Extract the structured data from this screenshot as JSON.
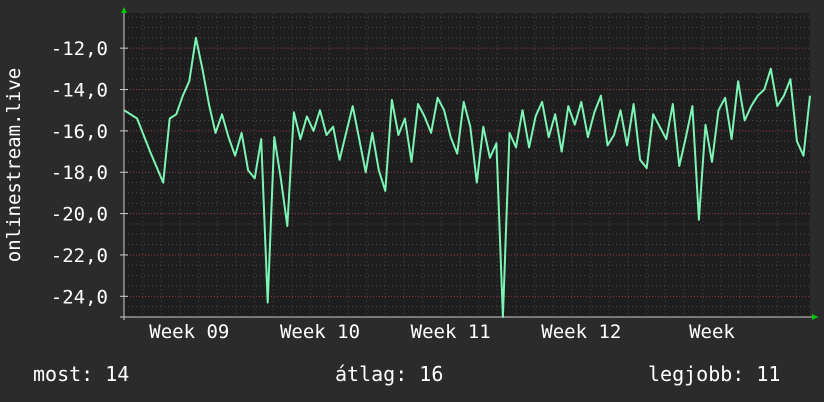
{
  "chart_data": {
    "type": "line",
    "ylabel": "onlinestream.live",
    "xlabel": "",
    "ylim": [
      -25,
      -10.3
    ],
    "y_ticks": [
      "-12,0",
      "-14,0",
      "-16,0",
      "-18,0",
      "-20,0",
      "-22,0",
      "-24,0"
    ],
    "y_tick_values": [
      -12,
      -14,
      -16,
      -18,
      -20,
      -22,
      -24
    ],
    "x_ticks": [
      "Week 09",
      "Week 10",
      "Week 11",
      "Week 12",
      "Week"
    ],
    "xlim": [
      0,
      5.25
    ],
    "x_tick_positions": [
      0.5,
      1.5,
      2.5,
      3.5,
      4.5
    ],
    "grid": true,
    "colors": {
      "line": "#7cf5b4",
      "background": "#1e1e1e",
      "grid": "#c84646",
      "axis_arrow": "#00c800"
    },
    "series": [
      {
        "x": [
          0.0,
          0.1,
          0.2,
          0.3,
          0.35,
          0.4,
          0.45,
          0.5,
          0.55,
          0.6,
          0.65,
          0.7,
          0.75,
          0.8,
          0.85,
          0.9,
          0.95,
          1.0,
          1.05,
          1.1,
          1.15,
          1.2,
          1.25,
          1.3,
          1.35,
          1.4,
          1.45,
          1.5,
          1.55,
          1.6,
          1.65,
          1.7,
          1.75,
          1.8,
          1.85,
          1.9,
          1.95,
          2.0,
          2.05,
          2.1,
          2.15,
          2.2,
          2.25,
          2.3,
          2.35,
          2.4,
          2.45,
          2.5,
          2.55,
          2.6,
          2.65,
          2.7,
          2.75,
          2.8,
          2.85,
          2.9,
          2.95,
          3.0,
          3.05,
          3.1,
          3.15,
          3.2,
          3.25,
          3.3,
          3.35,
          3.4,
          3.45,
          3.5,
          3.55,
          3.6,
          3.65,
          3.7,
          3.75,
          3.8,
          3.85,
          3.9,
          3.95,
          4.0,
          4.05,
          4.1,
          4.15,
          4.2,
          4.25,
          4.3,
          4.35,
          4.4,
          4.45,
          4.5,
          4.55,
          4.6,
          4.65,
          4.7,
          4.75,
          4.8,
          4.85,
          4.9,
          4.95,
          5.0,
          5.05,
          5.1,
          5.15,
          5.2,
          5.25
        ],
        "y": [
          -15,
          -15.4,
          -17,
          -18.5,
          -15.4,
          -15.2,
          -14.3,
          -13.6,
          -11.5,
          -13,
          -14.7,
          -16.1,
          -15.2,
          -16.3,
          -17.2,
          -16.1,
          -17.9,
          -18.3,
          -16.4,
          -24.3,
          -16.3,
          -18.3,
          -20.6,
          -15.1,
          -16.4,
          -15.3,
          -16,
          -15,
          -16.2,
          -15.8,
          -17.4,
          -16.1,
          -14.8,
          -16.4,
          -18,
          -16.1,
          -17.9,
          -18.9,
          -14.5,
          -16.2,
          -15.4,
          -17.5,
          -14.7,
          -15.3,
          -16.1,
          -14.4,
          -15,
          -16.3,
          -17.1,
          -14.6,
          -15.8,
          -18.5,
          -15.8,
          -17.3,
          -16.6,
          -25,
          -16.1,
          -16.8,
          -15,
          -16.8,
          -15.3,
          -14.6,
          -16.3,
          -15.2,
          -17,
          -14.8,
          -15.7,
          -14.6,
          -16.3,
          -15.1,
          -14.3,
          -16.7,
          -16.2,
          -15,
          -16.7,
          -14.7,
          -17.4,
          -17.8,
          -15.2,
          -15.8,
          -16.4,
          -14.7,
          -17.7,
          -16.3,
          -14.8,
          -20.3,
          -15.7,
          -17.5,
          -15,
          -14.4,
          -16.4,
          -13.6,
          -15.5,
          -14.8,
          -14.3,
          -14,
          -13,
          -14.8,
          -14.3,
          -13.5,
          -16.5,
          -17.2,
          -14.3
        ]
      }
    ]
  },
  "stats": {
    "most": "most: 14",
    "avg": "átlag: 16",
    "best": "legjobb: 11"
  }
}
